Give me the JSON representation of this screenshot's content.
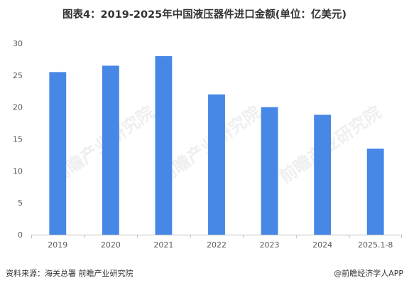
{
  "title": "图表4：2019-2025年中国液压器件进口金额(单位：亿美元)",
  "source": "资料来源：海关总署 前瞻产业研究院",
  "credit": "@前瞻经济学人APP",
  "watermark": "前瞻产业研究院",
  "colors": {
    "bar": "#4787E6",
    "grid": "#D9D9D9",
    "axis": "#BFBFBF"
  },
  "chart_data": {
    "type": "bar",
    "title": "图表4：2019-2025年中国液压器件进口金额(单位：亿美元)",
    "categories": [
      "2019",
      "2020",
      "2021",
      "2022",
      "2023",
      "2024",
      "2025.1-8"
    ],
    "values": [
      25.5,
      26.5,
      28,
      22,
      20,
      18.8,
      13.5
    ],
    "ylim": [
      0,
      30
    ],
    "yticks": [
      0,
      5,
      10,
      15,
      20,
      25,
      30
    ],
    "grid": false,
    "legend": "none"
  }
}
